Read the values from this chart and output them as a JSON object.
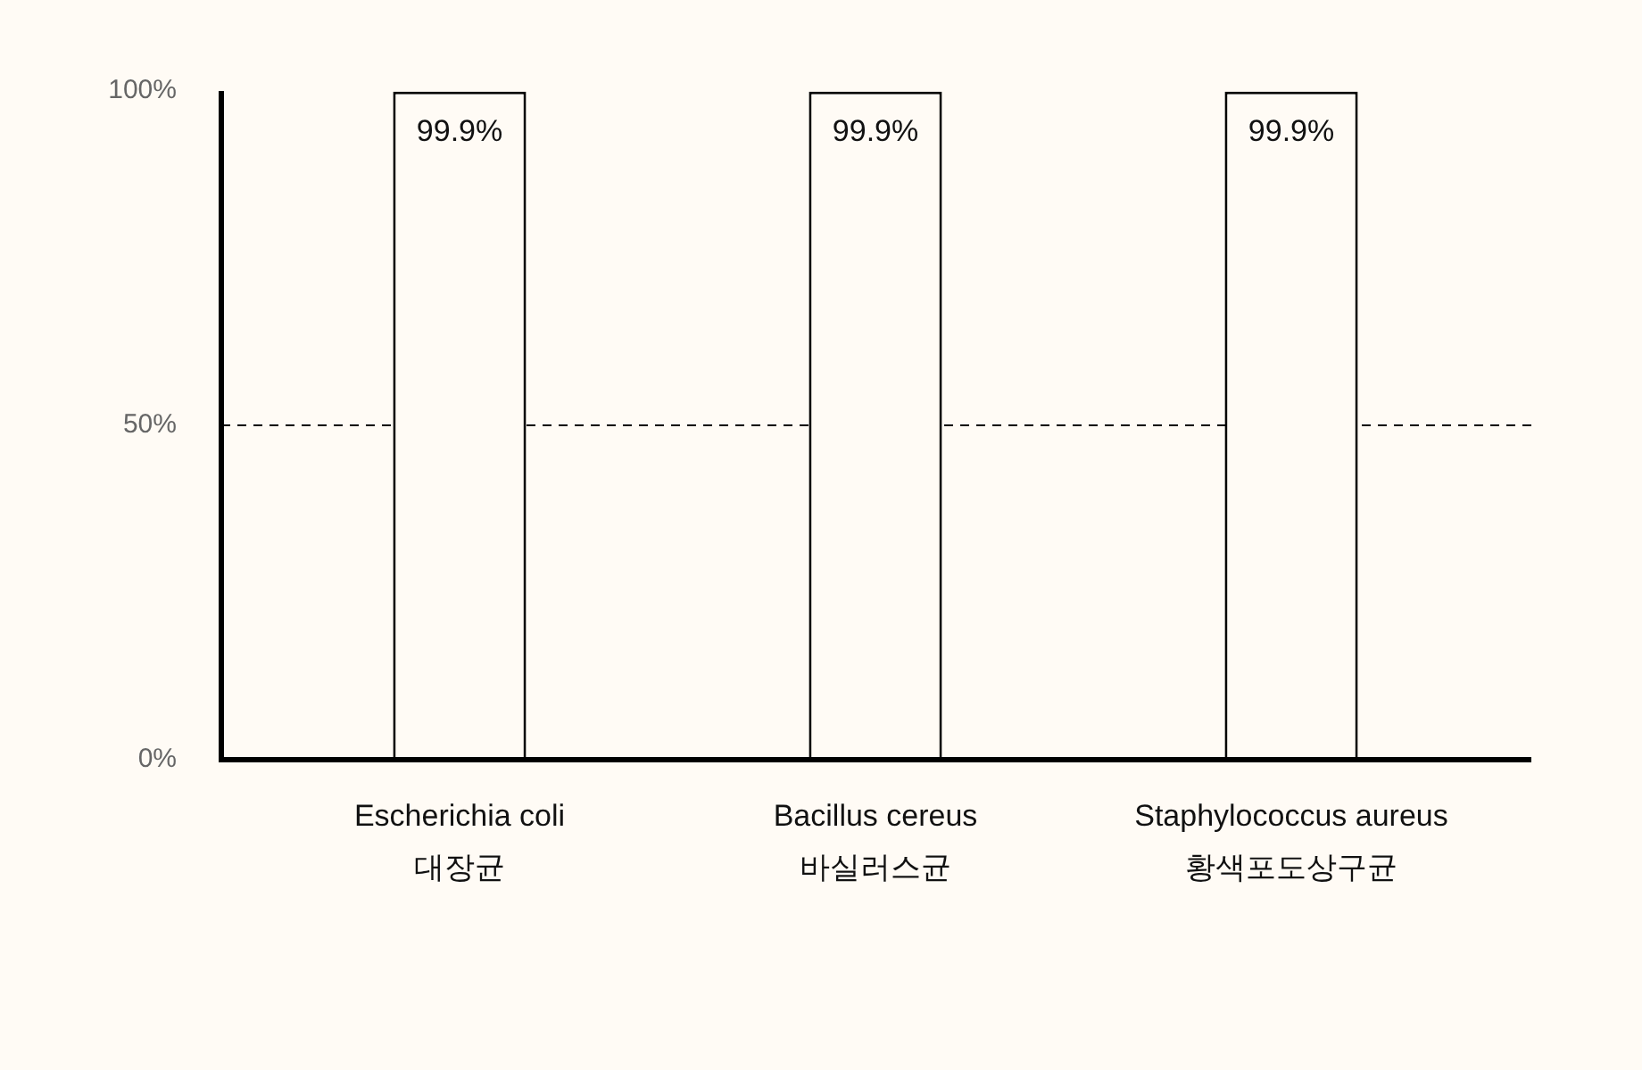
{
  "chart_data": {
    "type": "bar",
    "categories": [
      "Escherichia coli\n대장균",
      "Bacillus cereus\n바실러스균",
      "Staphylococcus aureus\n황색포도상구균"
    ],
    "values": [
      99.9,
      99.9,
      99.9
    ],
    "color": "#fffbf5",
    "value_labels": [
      "99.9%",
      "99.9%",
      "99.9%"
    ],
    "ylim": [
      0,
      100
    ],
    "yticks": [
      {
        "value": 0,
        "label": "0%"
      },
      {
        "value": 50,
        "label": "50%"
      },
      {
        "value": 100,
        "label": "100%"
      }
    ],
    "ref_lines": [
      {
        "axis": "y",
        "value": 50,
        "color": "#000000",
        "line_style": "dashed"
      }
    ]
  }
}
